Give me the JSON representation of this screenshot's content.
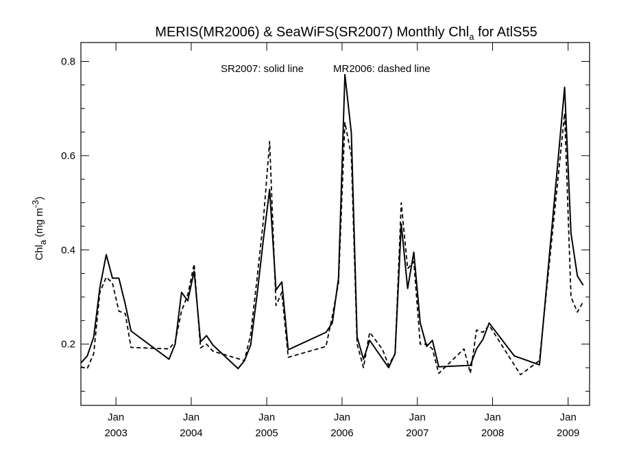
{
  "chart_data": {
    "type": "line",
    "title": {
      "main": "MERIS(MR2006) & SeaWiFS(SR2007) Monthly Chl",
      "subscript": "a",
      "suffix": " for AtlS55"
    },
    "ylabel": {
      "main": "Chl",
      "subscript": "a",
      "units": " (mg m",
      "superscript": "-3",
      "close": ")"
    },
    "annotation": {
      "solid": "SR2007: solid line",
      "dashed": "MR2006: dashed line"
    },
    "xlim": [
      "2002-07-15",
      "2009-04-15"
    ],
    "ylim": [
      0.07,
      0.84
    ],
    "y_ticks": [
      {
        "value": 0.2,
        "label": "0.2"
      },
      {
        "value": 0.4,
        "label": "0.4"
      },
      {
        "value": 0.6,
        "label": "0.6"
      },
      {
        "value": 0.8,
        "label": "0.8"
      }
    ],
    "x_ticks": [
      {
        "date": "2003-01-01",
        "month": "Jan",
        "year": "2003"
      },
      {
        "date": "2004-01-01",
        "month": "Jan",
        "year": "2004"
      },
      {
        "date": "2005-01-01",
        "month": "Jan",
        "year": "2005"
      },
      {
        "date": "2006-01-01",
        "month": "Jan",
        "year": "2006"
      },
      {
        "date": "2007-01-01",
        "month": "Jan",
        "year": "2007"
      },
      {
        "date": "2008-01-01",
        "month": "Jan",
        "year": "2008"
      },
      {
        "date": "2009-01-01",
        "month": "Jan",
        "year": "2009"
      }
    ],
    "series": [
      {
        "name": "SR2007",
        "style": "solid",
        "color": "#000000",
        "points": [
          [
            "2002-07-15",
            0.16
          ],
          [
            "2002-08-15",
            0.175
          ],
          [
            "2002-09-15",
            0.215
          ],
          [
            "2002-10-15",
            0.32
          ],
          [
            "2002-11-15",
            0.39
          ],
          [
            "2002-12-15",
            0.34
          ],
          [
            "2003-01-15",
            0.34
          ],
          [
            "2003-02-15",
            0.285
          ],
          [
            "2003-03-15",
            0.228
          ],
          [
            "2003-09-15",
            0.168
          ],
          [
            "2003-10-15",
            0.2
          ],
          [
            "2003-11-15",
            0.31
          ],
          [
            "2003-12-15",
            0.292
          ],
          [
            "2004-01-15",
            0.355
          ],
          [
            "2004-02-15",
            0.205
          ],
          [
            "2004-03-15",
            0.218
          ],
          [
            "2004-04-15",
            0.198
          ],
          [
            "2004-08-15",
            0.148
          ],
          [
            "2004-09-15",
            0.165
          ],
          [
            "2004-10-15",
            0.198
          ],
          [
            "2004-11-15",
            0.305
          ],
          [
            "2004-12-15",
            0.42
          ],
          [
            "2005-01-15",
            0.528
          ],
          [
            "2005-02-15",
            0.315
          ],
          [
            "2005-03-15",
            0.332
          ],
          [
            "2005-04-15",
            0.188
          ],
          [
            "2005-10-15",
            0.225
          ],
          [
            "2005-11-15",
            0.245
          ],
          [
            "2005-12-15",
            0.34
          ],
          [
            "2006-01-15",
            0.772
          ],
          [
            "2006-02-15",
            0.648
          ],
          [
            "2006-03-15",
            0.215
          ],
          [
            "2006-04-15",
            0.168
          ],
          [
            "2006-05-15",
            0.208
          ],
          [
            "2006-08-15",
            0.15
          ],
          [
            "2006-09-15",
            0.18
          ],
          [
            "2006-10-15",
            0.455
          ],
          [
            "2006-11-15",
            0.318
          ],
          [
            "2006-12-15",
            0.395
          ],
          [
            "2007-01-15",
            0.245
          ],
          [
            "2007-02-15",
            0.195
          ],
          [
            "2007-03-15",
            0.208
          ],
          [
            "2007-04-15",
            0.152
          ],
          [
            "2007-09-15",
            0.155
          ],
          [
            "2007-10-15",
            0.19
          ],
          [
            "2007-11-15",
            0.21
          ],
          [
            "2007-12-15",
            0.245
          ],
          [
            "2008-04-15",
            0.175
          ],
          [
            "2008-08-15",
            0.156
          ],
          [
            "2008-12-15",
            0.745
          ],
          [
            "2009-01-15",
            0.435
          ],
          [
            "2009-02-15",
            0.345
          ],
          [
            "2009-03-15",
            0.325
          ]
        ]
      },
      {
        "name": "MR2006",
        "style": "dashed",
        "color": "#000000",
        "points": [
          [
            "2002-07-15",
            0.152
          ],
          [
            "2002-08-15",
            0.148
          ],
          [
            "2002-09-15",
            0.18
          ],
          [
            "2002-10-15",
            0.31
          ],
          [
            "2002-11-15",
            0.342
          ],
          [
            "2002-12-15",
            0.33
          ],
          [
            "2003-01-15",
            0.27
          ],
          [
            "2003-02-15",
            0.265
          ],
          [
            "2003-03-15",
            0.193
          ],
          [
            "2003-09-15",
            0.19
          ],
          [
            "2003-10-15",
            0.205
          ],
          [
            "2003-11-15",
            0.27
          ],
          [
            "2003-12-15",
            0.305
          ],
          [
            "2004-01-15",
            0.37
          ],
          [
            "2004-02-15",
            0.192
          ],
          [
            "2004-03-15",
            0.2
          ],
          [
            "2004-04-15",
            0.185
          ],
          [
            "2004-09-15",
            0.165
          ],
          [
            "2004-10-15",
            0.22
          ],
          [
            "2004-11-15",
            0.34
          ],
          [
            "2004-12-15",
            0.46
          ],
          [
            "2005-01-15",
            0.63
          ],
          [
            "2005-02-15",
            0.282
          ],
          [
            "2005-03-15",
            0.31
          ],
          [
            "2005-04-15",
            0.172
          ],
          [
            "2005-10-15",
            0.195
          ],
          [
            "2005-11-15",
            0.26
          ],
          [
            "2005-12-15",
            0.33
          ],
          [
            "2006-01-15",
            0.67
          ],
          [
            "2006-02-15",
            0.6
          ],
          [
            "2006-03-15",
            0.2
          ],
          [
            "2006-04-15",
            0.15
          ],
          [
            "2006-05-15",
            0.225
          ],
          [
            "2006-07-15",
            0.19
          ],
          [
            "2006-08-15",
            0.155
          ],
          [
            "2006-09-15",
            0.18
          ],
          [
            "2006-10-15",
            0.5
          ],
          [
            "2006-11-15",
            0.36
          ],
          [
            "2006-12-15",
            0.375
          ],
          [
            "2007-01-15",
            0.2
          ],
          [
            "2007-02-15",
            0.2
          ],
          [
            "2007-03-15",
            0.19
          ],
          [
            "2007-04-15",
            0.138
          ],
          [
            "2007-08-15",
            0.19
          ],
          [
            "2007-09-15",
            0.138
          ],
          [
            "2007-10-15",
            0.23
          ],
          [
            "2007-11-15",
            0.225
          ],
          [
            "2007-12-15",
            0.24
          ],
          [
            "2008-05-15",
            0.135
          ],
          [
            "2008-08-15",
            0.165
          ],
          [
            "2008-12-15",
            0.69
          ],
          [
            "2009-01-15",
            0.3
          ],
          [
            "2009-02-15",
            0.268
          ],
          [
            "2009-03-15",
            0.29
          ]
        ]
      }
    ]
  }
}
